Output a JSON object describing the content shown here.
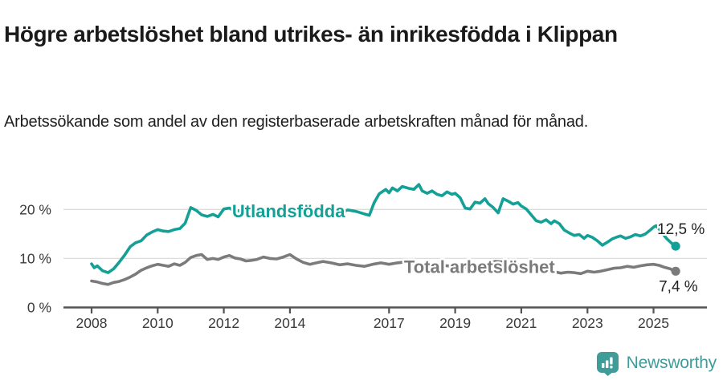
{
  "title": "Högre arbetslöshet bland utrikes- än inrikesfödda i Klippan",
  "subtitle": "Arbetssökande som andel av den registerbaserade arbetskraften månad för månad.",
  "branding": {
    "name": "Newsworthy",
    "icon": "bar-chart-speech-bubble-icon",
    "color": "#3f9c99"
  },
  "colors": {
    "background": "#ffffff",
    "title_text": "#1a1a1a",
    "subtitle_text": "#202020",
    "grid": "#dcdcdc",
    "axis": "#545454",
    "tick_label": "#3a3a3a",
    "end_label": "#222222",
    "series_foreign_born": "#14a096",
    "series_total": "#7b7b7b"
  },
  "chart_data": {
    "type": "line",
    "title": "Högre arbetslöshet bland utrikes- än inrikesfödda i Klippan",
    "subtitle": "Arbetssökande som andel av den registerbaserade arbetskraften månad för månad.",
    "xlabel": "",
    "ylabel": "",
    "x_axis": {
      "tick_labels": [
        "2008",
        "2010",
        "2012",
        "2014",
        "2017",
        "2019",
        "2021",
        "2023",
        "2025"
      ],
      "tick_years": [
        2008,
        2010,
        2012,
        2014,
        2017,
        2019,
        2021,
        2023,
        2025
      ],
      "range": [
        2008,
        2025.67
      ]
    },
    "y_axis": {
      "unit": "%",
      "tick_labels": [
        "0 %",
        "10 %",
        "20 %"
      ],
      "tick_values": [
        0,
        10,
        20
      ],
      "gridline_values": [
        10,
        20
      ],
      "range": [
        0,
        26
      ],
      "grid": true
    },
    "legend_position": "inline-labels",
    "series": [
      {
        "name": "Utlandsfödda",
        "color": "#14a096",
        "end_value": 12.5,
        "end_label": "12,5 %",
        "inline_label": {
          "year": 2012.25,
          "value": 19.6
        },
        "points": [
          [
            2008.0,
            8.9
          ],
          [
            2008.08,
            8.1
          ],
          [
            2008.17,
            8.5
          ],
          [
            2008.33,
            7.5
          ],
          [
            2008.5,
            7.1
          ],
          [
            2008.67,
            7.9
          ],
          [
            2008.83,
            9.2
          ],
          [
            2009.0,
            10.7
          ],
          [
            2009.17,
            12.4
          ],
          [
            2009.33,
            13.2
          ],
          [
            2009.5,
            13.6
          ],
          [
            2009.67,
            14.8
          ],
          [
            2009.83,
            15.4
          ],
          [
            2010.0,
            15.9
          ],
          [
            2010.17,
            15.6
          ],
          [
            2010.33,
            15.5
          ],
          [
            2010.5,
            15.9
          ],
          [
            2010.67,
            16.1
          ],
          [
            2010.83,
            17.2
          ],
          [
            2011.0,
            20.4
          ],
          [
            2011.17,
            19.8
          ],
          [
            2011.33,
            18.9
          ],
          [
            2011.5,
            18.6
          ],
          [
            2011.67,
            19.0
          ],
          [
            2011.83,
            18.5
          ],
          [
            2012.0,
            20.1
          ],
          [
            2012.17,
            20.3
          ],
          [
            2012.33,
            19.6
          ],
          [
            2012.5,
            19.8
          ],
          [
            2012.67,
            19.5
          ],
          [
            2012.83,
            19.9
          ],
          [
            2013.0,
            19.8
          ],
          [
            2013.25,
            19.4
          ],
          [
            2013.5,
            19.8
          ],
          [
            2013.75,
            20.1
          ],
          [
            2014.0,
            19.5
          ],
          [
            2014.25,
            19.9
          ],
          [
            2014.5,
            19.4
          ],
          [
            2014.75,
            19.7
          ],
          [
            2015.0,
            19.6
          ],
          [
            2015.25,
            20.1
          ],
          [
            2015.5,
            19.3
          ],
          [
            2015.75,
            19.9
          ],
          [
            2016.0,
            19.6
          ],
          [
            2016.2,
            19.2
          ],
          [
            2016.4,
            18.8
          ],
          [
            2016.55,
            21.4
          ],
          [
            2016.7,
            23.2
          ],
          [
            2016.9,
            24.1
          ],
          [
            2017.0,
            23.4
          ],
          [
            2017.1,
            24.4
          ],
          [
            2017.25,
            23.8
          ],
          [
            2017.4,
            24.7
          ],
          [
            2017.6,
            24.3
          ],
          [
            2017.75,
            24.1
          ],
          [
            2017.9,
            25.1
          ],
          [
            2018.0,
            23.8
          ],
          [
            2018.15,
            23.3
          ],
          [
            2018.3,
            23.8
          ],
          [
            2018.45,
            23.1
          ],
          [
            2018.6,
            22.8
          ],
          [
            2018.75,
            23.6
          ],
          [
            2018.9,
            23.1
          ],
          [
            2019.0,
            23.3
          ],
          [
            2019.15,
            22.4
          ],
          [
            2019.3,
            20.3
          ],
          [
            2019.45,
            20.1
          ],
          [
            2019.6,
            21.5
          ],
          [
            2019.75,
            21.3
          ],
          [
            2019.9,
            22.2
          ],
          [
            2020.0,
            21.2
          ],
          [
            2020.15,
            20.4
          ],
          [
            2020.3,
            19.3
          ],
          [
            2020.45,
            22.2
          ],
          [
            2020.6,
            21.7
          ],
          [
            2020.75,
            21.1
          ],
          [
            2020.9,
            21.4
          ],
          [
            2021.0,
            20.7
          ],
          [
            2021.15,
            20.1
          ],
          [
            2021.3,
            18.9
          ],
          [
            2021.45,
            17.7
          ],
          [
            2021.6,
            17.4
          ],
          [
            2021.75,
            17.9
          ],
          [
            2021.9,
            17.1
          ],
          [
            2022.0,
            17.7
          ],
          [
            2022.15,
            17.1
          ],
          [
            2022.3,
            15.8
          ],
          [
            2022.45,
            15.2
          ],
          [
            2022.6,
            14.7
          ],
          [
            2022.75,
            14.9
          ],
          [
            2022.9,
            14.1
          ],
          [
            2023.0,
            14.7
          ],
          [
            2023.15,
            14.3
          ],
          [
            2023.3,
            13.6
          ],
          [
            2023.45,
            12.7
          ],
          [
            2023.6,
            13.3
          ],
          [
            2023.75,
            14.0
          ],
          [
            2023.9,
            14.4
          ],
          [
            2024.0,
            14.6
          ],
          [
            2024.15,
            14.1
          ],
          [
            2024.3,
            14.4
          ],
          [
            2024.45,
            14.9
          ],
          [
            2024.6,
            14.6
          ],
          [
            2024.75,
            15.0
          ],
          [
            2024.9,
            15.8
          ],
          [
            2025.0,
            16.4
          ],
          [
            2025.08,
            16.7
          ],
          [
            2025.17,
            16.0
          ],
          [
            2025.25,
            15.3
          ],
          [
            2025.33,
            14.6
          ],
          [
            2025.42,
            13.9
          ],
          [
            2025.5,
            13.4
          ],
          [
            2025.58,
            12.9
          ],
          [
            2025.67,
            12.5
          ]
        ]
      },
      {
        "name": "Total arbetslöshet",
        "color": "#7b7b7b",
        "end_value": 7.4,
        "end_label": "7,4 %",
        "inline_label": {
          "year": 2017.45,
          "value": 8.3
        },
        "points": [
          [
            2008.0,
            5.4
          ],
          [
            2008.17,
            5.2
          ],
          [
            2008.33,
            4.9
          ],
          [
            2008.5,
            4.7
          ],
          [
            2008.67,
            5.1
          ],
          [
            2008.83,
            5.3
          ],
          [
            2009.0,
            5.7
          ],
          [
            2009.17,
            6.2
          ],
          [
            2009.33,
            6.8
          ],
          [
            2009.5,
            7.6
          ],
          [
            2009.67,
            8.1
          ],
          [
            2009.83,
            8.5
          ],
          [
            2010.0,
            8.8
          ],
          [
            2010.17,
            8.6
          ],
          [
            2010.33,
            8.4
          ],
          [
            2010.5,
            8.9
          ],
          [
            2010.67,
            8.6
          ],
          [
            2010.83,
            9.2
          ],
          [
            2011.0,
            10.2
          ],
          [
            2011.17,
            10.6
          ],
          [
            2011.33,
            10.8
          ],
          [
            2011.5,
            9.8
          ],
          [
            2011.67,
            10.0
          ],
          [
            2011.83,
            9.8
          ],
          [
            2012.0,
            10.3
          ],
          [
            2012.17,
            10.6
          ],
          [
            2012.33,
            10.1
          ],
          [
            2012.5,
            9.9
          ],
          [
            2012.67,
            9.5
          ],
          [
            2012.83,
            9.6
          ],
          [
            2013.0,
            9.8
          ],
          [
            2013.2,
            10.3
          ],
          [
            2013.4,
            10.0
          ],
          [
            2013.6,
            9.9
          ],
          [
            2013.8,
            10.3
          ],
          [
            2014.0,
            10.8
          ],
          [
            2014.2,
            9.9
          ],
          [
            2014.4,
            9.2
          ],
          [
            2014.6,
            8.8
          ],
          [
            2014.8,
            9.1
          ],
          [
            2015.0,
            9.4
          ],
          [
            2015.25,
            9.1
          ],
          [
            2015.5,
            8.7
          ],
          [
            2015.75,
            8.9
          ],
          [
            2016.0,
            8.6
          ],
          [
            2016.25,
            8.4
          ],
          [
            2016.5,
            8.8
          ],
          [
            2016.75,
            9.1
          ],
          [
            2017.0,
            8.8
          ],
          [
            2017.25,
            9.1
          ],
          [
            2017.5,
            9.3
          ],
          [
            2017.75,
            9.0
          ],
          [
            2018.0,
            8.8
          ],
          [
            2018.25,
            8.6
          ],
          [
            2018.5,
            8.7
          ],
          [
            2018.75,
            8.5
          ],
          [
            2019.0,
            8.4
          ],
          [
            2019.25,
            8.2
          ],
          [
            2019.5,
            8.4
          ],
          [
            2019.75,
            8.6
          ],
          [
            2020.0,
            8.8
          ],
          [
            2020.2,
            9.4
          ],
          [
            2020.4,
            9.3
          ],
          [
            2020.6,
            9.1
          ],
          [
            2020.8,
            8.9
          ],
          [
            2021.0,
            8.7
          ],
          [
            2021.25,
            8.3
          ],
          [
            2021.5,
            7.9
          ],
          [
            2021.75,
            7.6
          ],
          [
            2022.0,
            7.3
          ],
          [
            2022.2,
            7.0
          ],
          [
            2022.4,
            7.2
          ],
          [
            2022.6,
            7.1
          ],
          [
            2022.8,
            6.9
          ],
          [
            2023.0,
            7.4
          ],
          [
            2023.2,
            7.2
          ],
          [
            2023.4,
            7.4
          ],
          [
            2023.6,
            7.7
          ],
          [
            2023.8,
            8.0
          ],
          [
            2024.0,
            8.1
          ],
          [
            2024.2,
            8.4
          ],
          [
            2024.4,
            8.2
          ],
          [
            2024.6,
            8.5
          ],
          [
            2024.8,
            8.7
          ],
          [
            2025.0,
            8.8
          ],
          [
            2025.17,
            8.6
          ],
          [
            2025.33,
            8.2
          ],
          [
            2025.5,
            7.9
          ],
          [
            2025.58,
            7.6
          ],
          [
            2025.67,
            7.4
          ]
        ]
      }
    ]
  }
}
